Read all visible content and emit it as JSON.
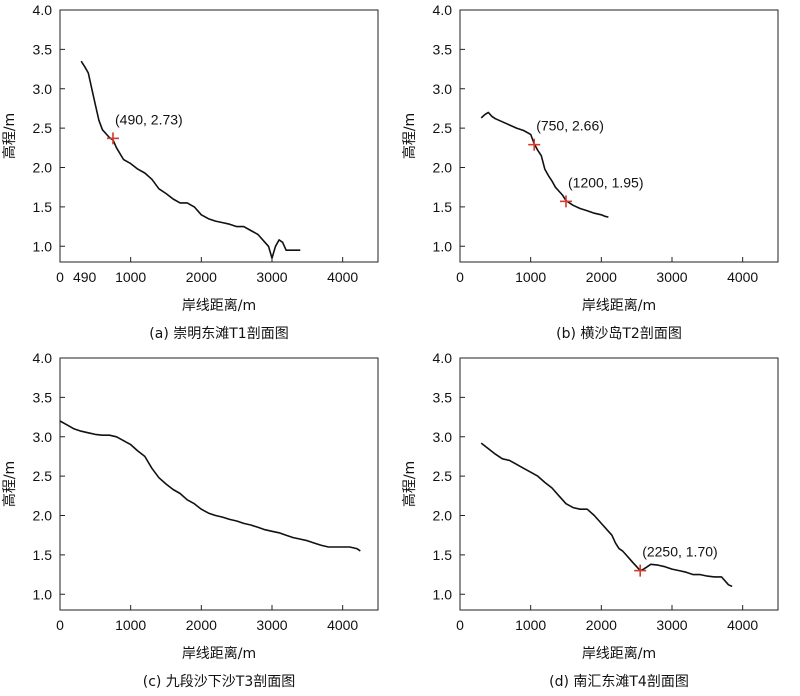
{
  "chart_data": [
    {
      "type": "line",
      "caption": "(a) 崇明东滩T1剖面图",
      "xlabel": "岸线距离/m",
      "ylabel": "高程/m",
      "xlim": [
        0,
        4500
      ],
      "ylim": [
        0.8,
        4.0
      ],
      "xticks": [
        0,
        1000,
        2000,
        3000,
        4000
      ],
      "yticks": [
        1.0,
        1.5,
        2.0,
        2.5,
        3.0,
        3.5,
        4.0
      ],
      "extra_xtick_label": "490",
      "line_color": "#111111",
      "marker_color": "#d63a2f",
      "series": [
        {
          "x": [
            300,
            350,
            400,
            450,
            500,
            550,
            600,
            650,
            700,
            750,
            800,
            900,
            1000,
            1100,
            1200,
            1300,
            1400,
            1500,
            1600,
            1700,
            1800,
            1900,
            2000,
            2100,
            2200,
            2300,
            2400,
            2500,
            2600,
            2700,
            2800,
            2900,
            2950,
            3000,
            3050,
            3100,
            3150,
            3200,
            3300,
            3400
          ],
          "y": [
            3.35,
            3.28,
            3.2,
            3.0,
            2.8,
            2.6,
            2.48,
            2.43,
            2.38,
            2.35,
            2.25,
            2.1,
            2.05,
            1.98,
            1.93,
            1.85,
            1.73,
            1.67,
            1.6,
            1.55,
            1.55,
            1.5,
            1.4,
            1.35,
            1.32,
            1.3,
            1.28,
            1.25,
            1.25,
            1.2,
            1.15,
            1.05,
            1.0,
            0.85,
            1.0,
            1.08,
            1.05,
            0.95,
            0.95,
            0.95
          ]
        }
      ],
      "annotations": [
        {
          "x": 750,
          "y": 2.37,
          "label": "(490, 2.73)"
        }
      ]
    },
    {
      "type": "line",
      "caption": "(b) 横沙岛T2剖面图",
      "xlabel": "岸线距离/m",
      "ylabel": "高程/m",
      "xlim": [
        0,
        4500
      ],
      "ylim": [
        0.8,
        4.0
      ],
      "xticks": [
        0,
        1000,
        2000,
        3000,
        4000
      ],
      "yticks": [
        1.0,
        1.5,
        2.0,
        2.5,
        3.0,
        3.5,
        4.0
      ],
      "line_color": "#111111",
      "marker_color": "#d63a2f",
      "series": [
        {
          "x": [
            300,
            350,
            400,
            450,
            500,
            600,
            700,
            800,
            900,
            1000,
            1050,
            1100,
            1150,
            1200,
            1250,
            1300,
            1350,
            1400,
            1450,
            1500,
            1550,
            1600,
            1700,
            1800,
            1900,
            2000,
            2050,
            2100
          ],
          "y": [
            2.63,
            2.67,
            2.7,
            2.65,
            2.62,
            2.58,
            2.54,
            2.5,
            2.47,
            2.42,
            2.3,
            2.22,
            2.15,
            1.98,
            1.9,
            1.83,
            1.75,
            1.7,
            1.65,
            1.58,
            1.55,
            1.52,
            1.48,
            1.45,
            1.42,
            1.4,
            1.38,
            1.37
          ]
        }
      ],
      "annotations": [
        {
          "x": 1050,
          "y": 2.29,
          "label": "(750, 2.66)"
        },
        {
          "x": 1500,
          "y": 1.57,
          "label": "(1200, 1.95)"
        }
      ]
    },
    {
      "type": "line",
      "caption": "(c) 九段沙下沙T3剖面图",
      "xlabel": "岸线距离/m",
      "ylabel": "高程/m",
      "xlim": [
        0,
        4500
      ],
      "ylim": [
        0.8,
        4.0
      ],
      "xticks": [
        0,
        1000,
        2000,
        3000,
        4000
      ],
      "yticks": [
        1.0,
        1.5,
        2.0,
        2.5,
        3.0,
        3.5,
        4.0
      ],
      "line_color": "#111111",
      "series": [
        {
          "x": [
            0,
            100,
            200,
            300,
            400,
            500,
            600,
            700,
            800,
            900,
            1000,
            1100,
            1200,
            1300,
            1400,
            1500,
            1600,
            1700,
            1800,
            1900,
            2000,
            2100,
            2200,
            2300,
            2400,
            2500,
            2600,
            2700,
            2800,
            2900,
            3000,
            3100,
            3200,
            3300,
            3400,
            3500,
            3600,
            3700,
            3800,
            3900,
            4000,
            4100,
            4200,
            4250
          ],
          "y": [
            3.2,
            3.15,
            3.1,
            3.07,
            3.05,
            3.03,
            3.02,
            3.02,
            3.0,
            2.95,
            2.9,
            2.82,
            2.75,
            2.6,
            2.48,
            2.4,
            2.33,
            2.28,
            2.2,
            2.15,
            2.08,
            2.03,
            2.0,
            1.98,
            1.95,
            1.93,
            1.9,
            1.88,
            1.85,
            1.82,
            1.8,
            1.78,
            1.75,
            1.72,
            1.7,
            1.68,
            1.65,
            1.62,
            1.6,
            1.6,
            1.6,
            1.6,
            1.58,
            1.55
          ]
        }
      ],
      "annotations": []
    },
    {
      "type": "line",
      "caption": "(d) 南汇东滩T4剖面图",
      "xlabel": "岸线距离/m",
      "ylabel": "高程/m",
      "xlim": [
        0,
        4500
      ],
      "ylim": [
        0.8,
        4.0
      ],
      "xticks": [
        0,
        1000,
        2000,
        3000,
        4000
      ],
      "yticks": [
        1.0,
        1.5,
        2.0,
        2.5,
        3.0,
        3.5,
        4.0
      ],
      "line_color": "#111111",
      "marker_color": "#d63a2f",
      "series": [
        {
          "x": [
            300,
            400,
            500,
            600,
            700,
            800,
            900,
            1000,
            1100,
            1200,
            1300,
            1400,
            1500,
            1600,
            1700,
            1800,
            1900,
            2000,
            2100,
            2150,
            2200,
            2250,
            2300,
            2350,
            2400,
            2450,
            2500,
            2550,
            2600,
            2650,
            2700,
            2800,
            2900,
            3000,
            3100,
            3200,
            3300,
            3400,
            3500,
            3600,
            3700,
            3800,
            3850
          ],
          "y": [
            2.92,
            2.85,
            2.78,
            2.72,
            2.7,
            2.65,
            2.6,
            2.55,
            2.5,
            2.42,
            2.35,
            2.25,
            2.15,
            2.1,
            2.08,
            2.08,
            2.0,
            1.9,
            1.8,
            1.75,
            1.65,
            1.58,
            1.55,
            1.5,
            1.45,
            1.4,
            1.35,
            1.3,
            1.32,
            1.35,
            1.38,
            1.37,
            1.35,
            1.32,
            1.3,
            1.28,
            1.25,
            1.25,
            1.23,
            1.22,
            1.22,
            1.12,
            1.1
          ]
        }
      ],
      "annotations": [
        {
          "x": 2550,
          "y": 1.3,
          "label": "(2250, 1.70)"
        }
      ]
    }
  ]
}
